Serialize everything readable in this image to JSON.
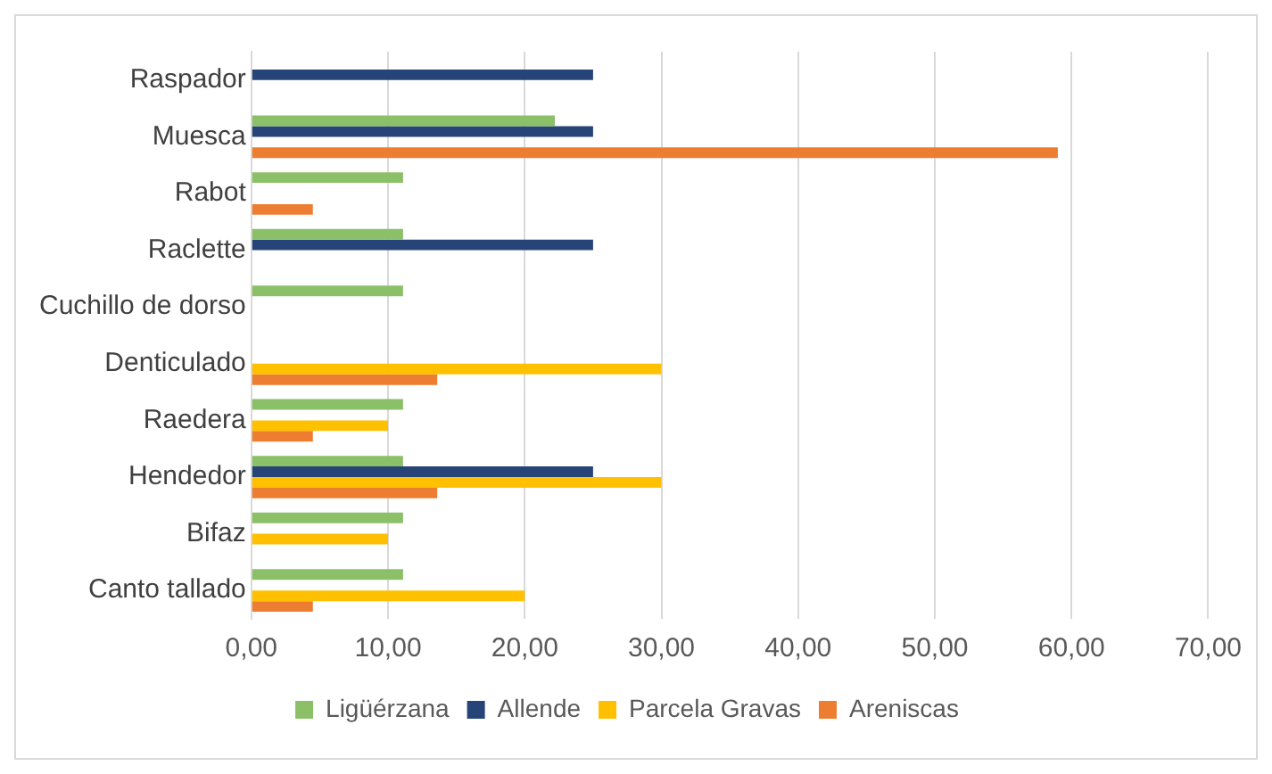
{
  "chart_data": {
    "type": "bar",
    "orientation": "horizontal",
    "categories": [
      "Raspador",
      "Muesca",
      "Rabot",
      "Raclette",
      "Cuchillo de dorso",
      "Denticulado",
      "Raedera",
      "Hendedor",
      "Bifaz",
      "Canto tallado"
    ],
    "series": [
      {
        "name": "Ligüérzana",
        "color": "#8cc068",
        "values": [
          null,
          22.2,
          11.1,
          11.1,
          11.1,
          null,
          11.1,
          11.1,
          11.1,
          11.1
        ]
      },
      {
        "name": "Allende",
        "color": "#264478",
        "values": [
          25,
          25,
          null,
          25,
          null,
          null,
          null,
          25,
          null,
          null
        ]
      },
      {
        "name": "Parcela Gravas",
        "color": "#ffc000",
        "values": [
          null,
          null,
          null,
          null,
          null,
          30,
          10,
          30,
          10,
          20
        ]
      },
      {
        "name": "Areniscas",
        "color": "#ed7d31",
        "values": [
          null,
          59,
          4.5,
          null,
          null,
          13.6,
          4.5,
          13.6,
          null,
          4.5
        ]
      }
    ],
    "xlim": [
      0,
      70
    ],
    "xticks": [
      {
        "value": 0,
        "label": "0,00"
      },
      {
        "value": 10,
        "label": "10,00"
      },
      {
        "value": 20,
        "label": "20,00"
      },
      {
        "value": 30,
        "label": "30,00"
      },
      {
        "value": 40,
        "label": "40,00"
      },
      {
        "value": 50,
        "label": "50,00"
      },
      {
        "value": 60,
        "label": "60,00"
      },
      {
        "value": 70,
        "label": "70,00"
      }
    ],
    "grid": "x",
    "legend": "bottom"
  }
}
